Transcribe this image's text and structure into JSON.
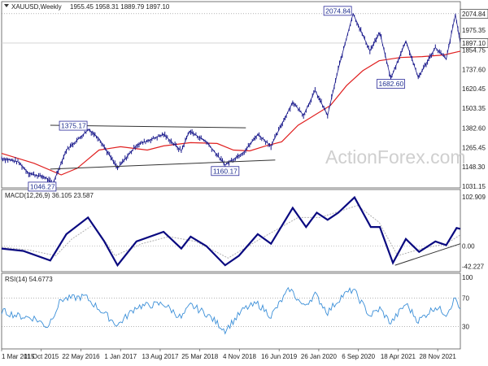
{
  "symbol_title": "XAUUSD,Weekly",
  "ohlc": "1955.45 1958.31 1889.79 1897.10",
  "watermark": "ActionForex.com",
  "colors": {
    "price": "#1a1a8c",
    "ma": "#e02020",
    "macd": "#0a0a80",
    "signal": "#b0b0b0",
    "rsi": "#3b8fd8",
    "trendline": "#333333",
    "grid": "#cfcfcf",
    "dotted": "#888888",
    "box_border": "#2a2a9a"
  },
  "chart_data": [
    {
      "type": "line",
      "name": "price",
      "title": "XAUUSD,Weekly",
      "ylim": [
        1031.15,
        2133.0
      ],
      "yticks": [
        "2074.84",
        "1975.35",
        "1897.10",
        "1854.75",
        "1737.60",
        "1620.45",
        "1503.35",
        "1382.60",
        "1265.45",
        "1148.30",
        "1031.15"
      ],
      "current_value_label": "1897.10",
      "high_label": "2074.84",
      "points": [
        [
          "2015-03-01",
          1200
        ],
        [
          "2015-06-01",
          1180
        ],
        [
          "2015-08-01",
          1110
        ],
        [
          "2015-11-01",
          1085
        ],
        [
          "2015-12-15",
          1046.27
        ],
        [
          "2016-03-01",
          1250
        ],
        [
          "2016-07-05",
          1375.17
        ],
        [
          "2016-09-01",
          1320
        ],
        [
          "2016-12-15",
          1140
        ],
        [
          "2017-04-01",
          1280
        ],
        [
          "2017-09-01",
          1345
        ],
        [
          "2017-12-10",
          1245
        ],
        [
          "2018-01-25",
          1365
        ],
        [
          "2018-05-01",
          1300
        ],
        [
          "2018-08-15",
          1160.17
        ],
        [
          "2018-12-01",
          1240
        ],
        [
          "2019-02-15",
          1345
        ],
        [
          "2019-05-01",
          1275
        ],
        [
          "2019-09-01",
          1540
        ],
        [
          "2019-11-01",
          1460
        ],
        [
          "2020-01-05",
          1610
        ],
        [
          "2020-03-16",
          1460
        ],
        [
          "2020-05-15",
          1740
        ],
        [
          "2020-08-07",
          2074.84
        ],
        [
          "2020-11-10",
          1850
        ],
        [
          "2021-01-05",
          1960
        ],
        [
          "2021-03-08",
          1682.6
        ],
        [
          "2021-06-01",
          1910
        ],
        [
          "2021-08-10",
          1690
        ],
        [
          "2021-11-15",
          1870
        ],
        [
          "2022-01-15",
          1800
        ],
        [
          "2022-03-08",
          2070
        ],
        [
          "2022-04-05",
          1897.1
        ]
      ],
      "moving_average": [
        [
          "2015-03-01",
          1230
        ],
        [
          "2015-09-01",
          1170
        ],
        [
          "2016-02-01",
          1100
        ],
        [
          "2016-05-01",
          1140
        ],
        [
          "2016-09-01",
          1250
        ],
        [
          "2017-01-01",
          1270
        ],
        [
          "2017-06-01",
          1250
        ],
        [
          "2017-09-01",
          1275
        ],
        [
          "2018-02-01",
          1295
        ],
        [
          "2018-07-01",
          1290
        ],
        [
          "2018-10-01",
          1250
        ],
        [
          "2019-01-01",
          1245
        ],
        [
          "2019-04-01",
          1275
        ],
        [
          "2019-07-01",
          1300
        ],
        [
          "2019-10-01",
          1400
        ],
        [
          "2020-01-01",
          1460
        ],
        [
          "2020-04-01",
          1520
        ],
        [
          "2020-07-01",
          1640
        ],
        [
          "2020-10-01",
          1730
        ],
        [
          "2021-01-01",
          1790
        ],
        [
          "2021-05-01",
          1810
        ],
        [
          "2021-09-01",
          1815
        ],
        [
          "2022-01-01",
          1825
        ],
        [
          "2022-04-05",
          1848
        ]
      ],
      "annotations": [
        {
          "text": "2074.84",
          "x": "2020-08-07",
          "y": 2074.84
        },
        {
          "text": "1375.17",
          "x": "2016-07-05",
          "y": 1375.17
        },
        {
          "text": "1160.17",
          "x": "2018-08-15",
          "y": 1160.17
        },
        {
          "text": "1046.27",
          "x": "2015-12-15",
          "y": 1046.27
        },
        {
          "text": "1682.60",
          "x": "2021-03-08",
          "y": 1682.6
        }
      ],
      "trendlines": [
        {
          "from": [
            "2015-12-01",
            1400
          ],
          "to": [
            "2018-12-10",
            1385
          ]
        },
        {
          "from": [
            "2015-12-01",
            1135
          ],
          "to": [
            "2019-05-25",
            1190
          ]
        }
      ]
    },
    {
      "type": "line",
      "name": "macd",
      "title": "MACD(12,26,9) 36.105 23.587",
      "ylim": [
        -50,
        110
      ],
      "yticks": [
        "102.909",
        "0.00",
        "-42.227"
      ],
      "zero_line": 0,
      "macd": [
        [
          "2015-03-01",
          -5
        ],
        [
          "2015-07-01",
          -10
        ],
        [
          "2015-12-01",
          -30
        ],
        [
          "2016-03-01",
          25
        ],
        [
          "2016-07-01",
          60
        ],
        [
          "2016-10-01",
          10
        ],
        [
          "2016-12-15",
          -40
        ],
        [
          "2017-04-01",
          10
        ],
        [
          "2017-09-01",
          30
        ],
        [
          "2017-12-10",
          -5
        ],
        [
          "2018-02-01",
          20
        ],
        [
          "2018-05-01",
          0
        ],
        [
          "2018-08-15",
          -40
        ],
        [
          "2018-11-01",
          -20
        ],
        [
          "2019-02-15",
          25
        ],
        [
          "2019-05-01",
          5
        ],
        [
          "2019-09-01",
          80
        ],
        [
          "2019-11-15",
          40
        ],
        [
          "2020-01-15",
          70
        ],
        [
          "2020-03-16",
          55
        ],
        [
          "2020-05-15",
          70
        ],
        [
          "2020-08-15",
          102
        ],
        [
          "2020-11-15",
          40
        ],
        [
          "2021-01-05",
          40
        ],
        [
          "2021-03-20",
          -35
        ],
        [
          "2021-06-01",
          15
        ],
        [
          "2021-08-15",
          -12
        ],
        [
          "2021-11-15",
          10
        ],
        [
          "2022-01-15",
          2
        ],
        [
          "2022-03-15",
          38
        ],
        [
          "2022-04-05",
          36.105
        ]
      ],
      "signal": [
        [
          "2015-03-01",
          -2
        ],
        [
          "2015-08-01",
          -8
        ],
        [
          "2016-01-01",
          -20
        ],
        [
          "2016-04-01",
          15
        ],
        [
          "2016-08-01",
          45
        ],
        [
          "2016-12-01",
          -20
        ],
        [
          "2017-05-01",
          5
        ],
        [
          "2017-10-01",
          20
        ],
        [
          "2018-03-01",
          10
        ],
        [
          "2018-09-01",
          -25
        ],
        [
          "2019-03-01",
          15
        ],
        [
          "2019-10-01",
          60
        ],
        [
          "2020-02-01",
          60
        ],
        [
          "2020-09-01",
          85
        ],
        [
          "2021-01-01",
          50
        ],
        [
          "2021-04-15",
          -20
        ],
        [
          "2021-09-01",
          -5
        ],
        [
          "2022-01-15",
          5
        ],
        [
          "2022-04-05",
          23.587
        ]
      ],
      "trendline": {
        "from": [
          "2021-04-01",
          -40
        ],
        "to": [
          "2022-04-05",
          5
        ]
      }
    },
    {
      "type": "line",
      "name": "rsi",
      "title": "RSI(14) 54.6773",
      "ylim": [
        0,
        100
      ],
      "yticks": [
        "100",
        "70",
        "30",
        "0"
      ],
      "reference_lines": [
        70,
        30
      ],
      "points": [
        [
          "2015-03-01",
          52
        ],
        [
          "2015-06-01",
          45
        ],
        [
          "2015-09-01",
          42
        ],
        [
          "2015-11-15",
          30
        ],
        [
          "2016-02-01",
          68
        ],
        [
          "2016-06-15",
          72
        ],
        [
          "2016-09-01",
          55
        ],
        [
          "2016-12-15",
          32
        ],
        [
          "2017-04-01",
          58
        ],
        [
          "2017-09-01",
          62
        ],
        [
          "2017-12-10",
          42
        ],
        [
          "2018-02-01",
          60
        ],
        [
          "2018-05-01",
          48
        ],
        [
          "2018-08-15",
          25
        ],
        [
          "2018-12-01",
          55
        ],
        [
          "2019-02-15",
          62
        ],
        [
          "2019-05-01",
          45
        ],
        [
          "2019-08-15",
          83
        ],
        [
          "2019-11-01",
          58
        ],
        [
          "2020-01-05",
          75
        ],
        [
          "2020-03-16",
          50
        ],
        [
          "2020-06-01",
          72
        ],
        [
          "2020-08-07",
          82
        ],
        [
          "2020-11-10",
          45
        ],
        [
          "2021-01-05",
          55
        ],
        [
          "2021-03-08",
          35
        ],
        [
          "2021-06-01",
          62
        ],
        [
          "2021-08-10",
          38
        ],
        [
          "2021-11-15",
          58
        ],
        [
          "2022-01-15",
          48
        ],
        [
          "2022-03-08",
          70
        ],
        [
          "2022-04-05",
          54.68
        ]
      ]
    }
  ],
  "x_axis": {
    "start": "2015-03-01",
    "end": "2022-04-05",
    "labels": [
      {
        "text": "1 Mar 2015",
        "date": "2015-03-01"
      },
      {
        "text": "11 Oct 2015",
        "date": "2015-10-11"
      },
      {
        "text": "22 May 2016",
        "date": "2016-05-22"
      },
      {
        "text": "1 Jan 2017",
        "date": "2017-01-01"
      },
      {
        "text": "13 Aug 2017",
        "date": "2017-08-13"
      },
      {
        "text": "25 Mar 2018",
        "date": "2018-03-25"
      },
      {
        "text": "4 Nov 2018",
        "date": "2018-11-04"
      },
      {
        "text": "16 Jun 2019",
        "date": "2019-06-16"
      },
      {
        "text": "26 Jan 2020",
        "date": "2020-01-26"
      },
      {
        "text": "6 Sep 2020",
        "date": "2020-09-06"
      },
      {
        "text": "18 Apr 2021",
        "date": "2021-04-18"
      },
      {
        "text": "28 Nov 2021",
        "date": "2021-11-28"
      }
    ]
  }
}
